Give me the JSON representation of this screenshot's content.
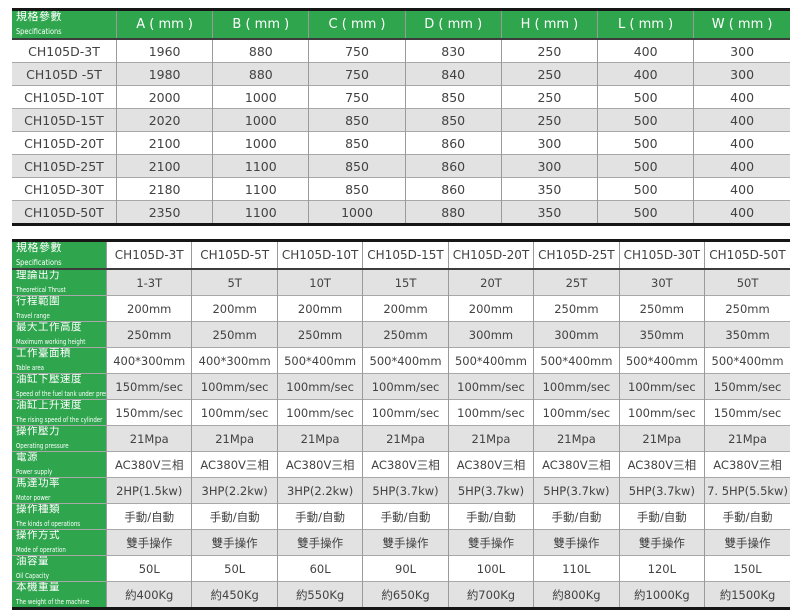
{
  "colors": {
    "green": "#2fa64e",
    "stripe_gray": "#e2e2e2",
    "text": "#424242",
    "outer_border": "#161616",
    "inner_border": "#9a9a9a"
  },
  "dim_table": {
    "header": {
      "zh": "規格參數",
      "en": "Specifications"
    },
    "columns": [
      "A ( mm )",
      "B ( mm )",
      "C ( mm )",
      "D ( mm )",
      "H ( mm )",
      "L ( mm )",
      "W ( mm )"
    ],
    "rows": [
      {
        "model": "CH105D-3T",
        "values": [
          "1960",
          "880",
          "750",
          "830",
          "250",
          "400",
          "300"
        ]
      },
      {
        "model": "CH105D -5T",
        "values": [
          "1980",
          "880",
          "750",
          "840",
          "250",
          "400",
          "300"
        ]
      },
      {
        "model": "CH105D-10T",
        "values": [
          "2000",
          "1000",
          "750",
          "850",
          "250",
          "500",
          "400"
        ]
      },
      {
        "model": "CH105D-15T",
        "values": [
          "2020",
          "1000",
          "850",
          "850",
          "250",
          "500",
          "400"
        ]
      },
      {
        "model": "CH105D-20T",
        "values": [
          "2100",
          "1000",
          "850",
          "860",
          "300",
          "500",
          "400"
        ]
      },
      {
        "model": "CH105D-25T",
        "values": [
          "2100",
          "1100",
          "850",
          "860",
          "300",
          "500",
          "400"
        ]
      },
      {
        "model": "CH105D-30T",
        "values": [
          "2180",
          "1100",
          "850",
          "860",
          "350",
          "500",
          "400"
        ]
      },
      {
        "model": "CH105D-50T",
        "values": [
          "2350",
          "1100",
          "1000",
          "880",
          "350",
          "500",
          "400"
        ]
      }
    ]
  },
  "spec_table": {
    "header": {
      "zh": "規格參數",
      "en": "Specifications"
    },
    "models": [
      "CH105D-3T",
      "CH105D-5T",
      "CH105D-10T",
      "CH105D-15T",
      "CH105D-20T",
      "CH105D-25T",
      "CH105D-30T",
      "CH105D-50T"
    ],
    "rows": [
      {
        "zh": "理論出力",
        "en": "Theoretical Thrust",
        "values": [
          "1-3T",
          "5T",
          "10T",
          "15T",
          "20T",
          "25T",
          "30T",
          "50T"
        ]
      },
      {
        "zh": "行程範圍",
        "en": "Travel range",
        "values": [
          "200mm",
          "200mm",
          "200mm",
          "200mm",
          "200mm",
          "250mm",
          "250mm",
          "250mm"
        ]
      },
      {
        "zh": "最大工作高度",
        "en": "Maximum working height",
        "values": [
          "250mm",
          "250mm",
          "250mm",
          "250mm",
          "300mm",
          "300mm",
          "350mm",
          "350mm"
        ]
      },
      {
        "zh": "工作臺面積",
        "en": "Table area",
        "values": [
          "400*300mm",
          "400*300mm",
          "500*400mm",
          "500*400mm",
          "500*400mm",
          "500*400mm",
          "500*400mm",
          "500*400mm"
        ]
      },
      {
        "zh": "油缸下壓速度",
        "en": "Speed of the fuel tank under pressure",
        "values": [
          "150mm/sec",
          "100mm/sec",
          "100mm/sec",
          "100mm/sec",
          "100mm/sec",
          "100mm/sec",
          "100mm/sec",
          "150mm/sec"
        ]
      },
      {
        "zh": "油缸上升速度",
        "en": "The rising speed of the cylinder",
        "values": [
          "150mm/sec",
          "100mm/sec",
          "100mm/sec",
          "100mm/sec",
          "100mm/sec",
          "100mm/sec",
          "100mm/sec",
          "150mm/sec"
        ]
      },
      {
        "zh": "操作壓力",
        "en": "Operating pressure",
        "values": [
          "21Mpa",
          "21Mpa",
          "21Mpa",
          "21Mpa",
          "21Mpa",
          "21Mpa",
          "21Mpa",
          "21Mpa"
        ]
      },
      {
        "zh": "電源",
        "en": "Power supply",
        "values": [
          "AC380V三相",
          "AC380V三相",
          "AC380V三相",
          "AC380V三相",
          "AC380V三相",
          "AC380V三相",
          "AC380V三相",
          "AC380V三相"
        ]
      },
      {
        "zh": "馬達功率",
        "en": "Motor power",
        "values": [
          "2HP(1.5kw)",
          "3HP(2.2kw)",
          "3HP(2.2kw)",
          "5HP(3.7kw)",
          "5HP(3.7kw)",
          "5HP(3.7kw)",
          "5HP(3.7kw)",
          "7. 5HP(5.5kw)"
        ]
      },
      {
        "zh": "操作種類",
        "en": "The kinds of operations",
        "values": [
          "手動/自動",
          "手動/自動",
          "手動/自動",
          "手動/自動",
          "手動/自動",
          "手動/自動",
          "手動/自動",
          "手動/自動"
        ]
      },
      {
        "zh": "操作方式",
        "en": "Mode of operation",
        "values": [
          "雙手操作",
          "雙手操作",
          "雙手操作",
          "雙手操作",
          "雙手操作",
          "雙手操作",
          "雙手操作",
          "雙手操作"
        ]
      },
      {
        "zh": "油容量",
        "en": "Oil Capacity",
        "values": [
          "50L",
          "50L",
          "60L",
          "90L",
          "100L",
          "110L",
          "120L",
          "150L"
        ]
      },
      {
        "zh": "本機重量",
        "en": "The weight of the machine",
        "values": [
          "約400Kg",
          "約450Kg",
          "約550Kg",
          "約650Kg",
          "約700Kg",
          "約800Kg",
          "約1000Kg",
          "約1500Kg"
        ]
      }
    ]
  }
}
